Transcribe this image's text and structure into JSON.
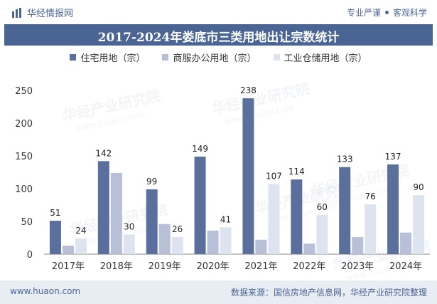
{
  "header": {
    "brand": "华经情报网",
    "tagline_left": "专业严谨",
    "tagline_right": "客观科学"
  },
  "footer": {
    "url": "www.huaon.com",
    "source": "数据来源：国信房地产信息网，华经产业研究院整理"
  },
  "watermark": {
    "text_cn": "华经产业研究院",
    "text_url": "www.huaon.com"
  },
  "colors": {
    "accent": "#4a6594",
    "series_residential": "#5b6f9c",
    "series_commercial": "#b8c0d8",
    "series_industrial": "#dde3ef",
    "footer_bg": "#e8ecf3"
  },
  "chart_data": {
    "type": "bar",
    "title": "2017-2024年娄底市三类用地出让宗数统计",
    "categories": [
      "2017年",
      "2018年",
      "2019年",
      "2020年",
      "2021年",
      "2022年",
      "2023年",
      "2024年"
    ],
    "series": [
      {
        "name": "住宅用地（宗）",
        "values": [
          51,
          142,
          99,
          149,
          238,
          114,
          133,
          137
        ],
        "labeled": true
      },
      {
        "name": "商服办公用地（宗）",
        "values": [
          13,
          124,
          46,
          36,
          22,
          16,
          26,
          33
        ],
        "labeled": false
      },
      {
        "name": "工业仓储用地（宗）",
        "values": [
          24,
          30,
          26,
          41,
          107,
          60,
          76,
          90
        ],
        "labeled": true
      }
    ],
    "ylim": [
      0,
      250
    ],
    "yticks": [
      "0",
      "50",
      "100",
      "150",
      "200",
      "250"
    ],
    "grid": false,
    "legend_position": "top-center",
    "xlabel": "",
    "ylabel": ""
  }
}
